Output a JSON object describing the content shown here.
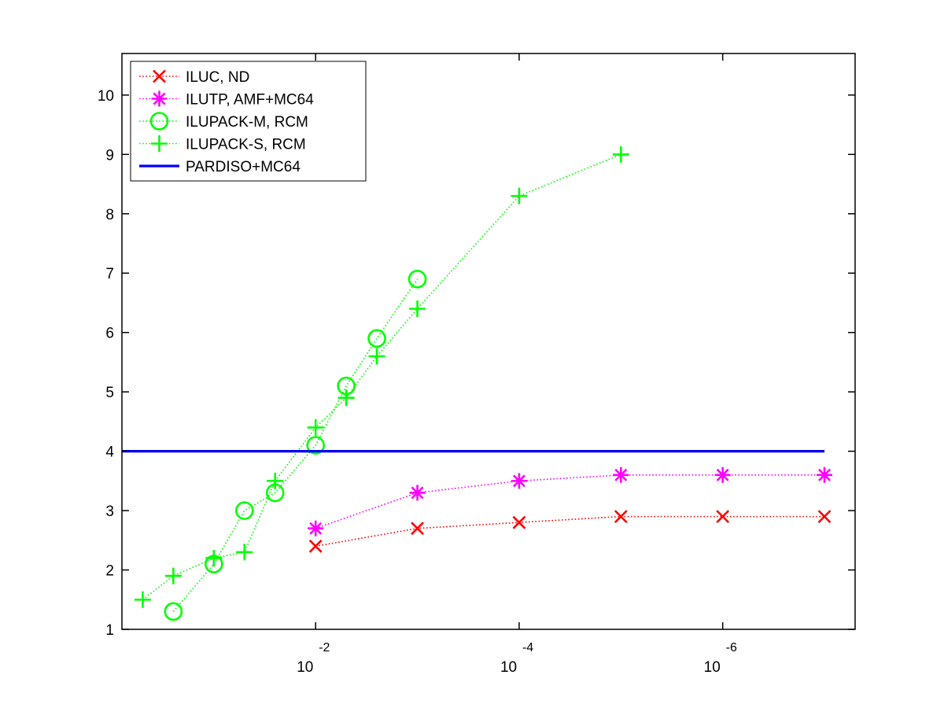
{
  "chart_data": {
    "type": "line",
    "title": "",
    "xlabel": "",
    "ylabel": "",
    "x_scale": "log",
    "x_direction": "reversed",
    "xlim": [
      0.8,
      5e-08
    ],
    "ylim": [
      1,
      10.7
    ],
    "grid": false,
    "legend_position": "top-left",
    "x_ticks": [
      {
        "value": 0.01,
        "base": "10",
        "exponent": "-2"
      },
      {
        "value": 0.0001,
        "base": "10",
        "exponent": "-4"
      },
      {
        "value": 1e-06,
        "base": "10",
        "exponent": "-6"
      }
    ],
    "y_ticks": [
      "1",
      "2",
      "3",
      "4",
      "5",
      "6",
      "7",
      "8",
      "9",
      "10"
    ],
    "series": [
      {
        "name": "ILUC,  ND",
        "color": "#ff0000",
        "marker": "x",
        "line_style": "dotted",
        "x": [
          0.01,
          0.001,
          0.0001,
          1e-05,
          1e-06,
          1e-07
        ],
        "y": [
          2.4,
          2.7,
          2.8,
          2.9,
          2.9,
          2.9
        ]
      },
      {
        "name": "ILUTP, AMF+MC64",
        "color": "#ff00ff",
        "marker": "asterisk",
        "line_style": "dotted",
        "x": [
          0.01,
          0.001,
          0.0001,
          1e-05,
          1e-06,
          1e-07
        ],
        "y": [
          2.7,
          3.3,
          3.5,
          3.6,
          3.6,
          3.6
        ]
      },
      {
        "name": "ILUPACK-M, RCM",
        "color": "#00ff00",
        "marker": "circle",
        "line_style": "dotted",
        "x": [
          0.25,
          0.1,
          0.05,
          0.025,
          0.01,
          0.005,
          0.0025,
          0.001
        ],
        "y": [
          1.3,
          2.1,
          3.0,
          3.3,
          4.1,
          5.1,
          5.9,
          6.9
        ]
      },
      {
        "name": "ILUPACK-S, RCM",
        "color": "#00ff00",
        "marker": "plus",
        "line_style": "dotted",
        "x": [
          0.5,
          0.25,
          0.1,
          0.05,
          0.025,
          0.01,
          0.005,
          0.0025,
          0.001,
          0.0001,
          1e-05
        ],
        "y": [
          1.5,
          1.9,
          2.2,
          2.3,
          3.5,
          4.4,
          4.9,
          5.6,
          6.4,
          8.3,
          9.0
        ]
      },
      {
        "name": "PARDISO+MC64",
        "color": "#0000ff",
        "marker": "none",
        "line_style": "solid",
        "constant_y": 4,
        "x": [
          0.8,
          1e-07
        ],
        "y": [
          4,
          4
        ]
      }
    ]
  }
}
